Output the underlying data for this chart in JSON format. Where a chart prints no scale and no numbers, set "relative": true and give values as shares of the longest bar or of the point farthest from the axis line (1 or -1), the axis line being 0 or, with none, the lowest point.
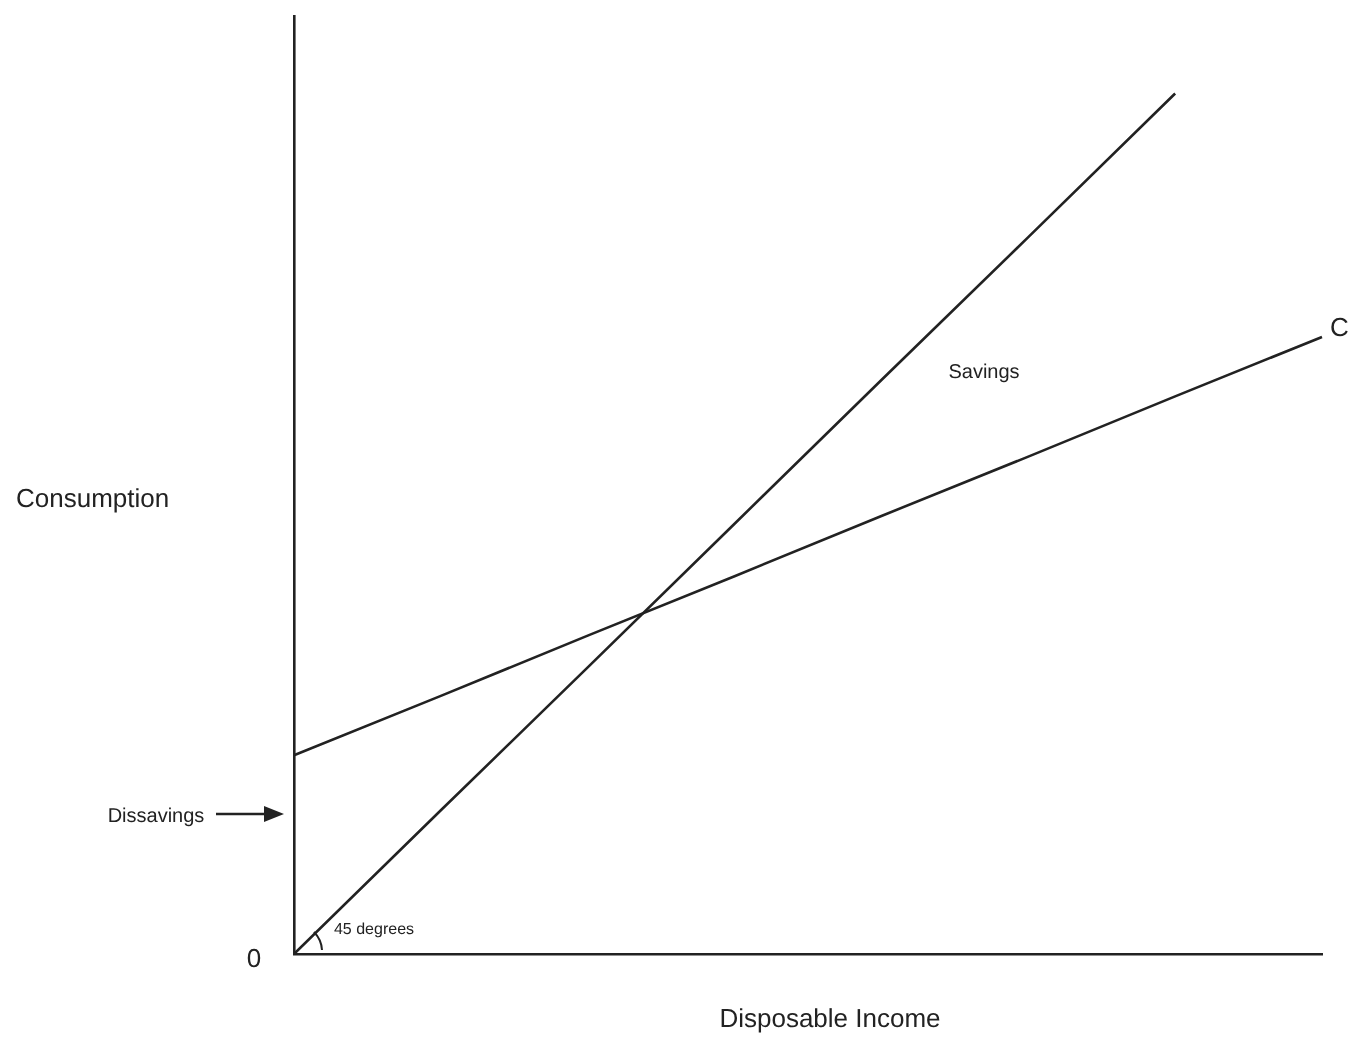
{
  "chart_data": {
    "type": "line",
    "relative": true,
    "xlabel": "Disposable Income",
    "ylabel": "Consumption",
    "tick_labels": false,
    "marker": "none",
    "annotations": [
      "Savings",
      "Dissavings",
      "45 degrees",
      "0"
    ],
    "categories": [
      null,
      null,
      null,
      null,
      null,
      null,
      null,
      null
    ],
    "series": [
      {
        "color": "#222222",
        "values": [
          0,
          0.167,
          0.333,
          0.5,
          0.667,
          0.833,
          1,
          null
        ]
      },
      {
        "name": "C",
        "color": "#222222",
        "values": [
          0.231,
          0.3,
          0.37,
          0.439,
          0.509,
          0.578,
          0.648,
          0.717
        ]
      }
    ]
  }
}
